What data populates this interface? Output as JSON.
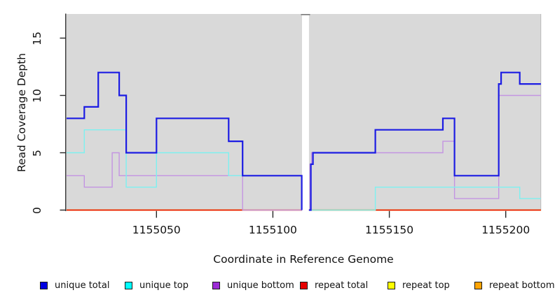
{
  "chart_data": {
    "type": "line",
    "step_style": "step-after",
    "title": "",
    "xlabel": "Coordinate in Reference Genome",
    "ylabel": "Read Coverage Depth",
    "xlim": [
      1155011,
      1155215
    ],
    "ylim": [
      0,
      17.1
    ],
    "grid": false,
    "plot_background": "#d9d9d9",
    "axis_color": "#262626",
    "gap_region": {
      "from": 1155112.5,
      "to": 1155115.5
    },
    "panels": [
      {
        "xlim": [
          1155011.4,
          1155112.5
        ]
      },
      {
        "xlim": [
          1155115.5,
          1155215.1
        ]
      }
    ],
    "x_ticks": [
      {
        "value": 1155050,
        "label": "1155050"
      },
      {
        "value": 1155100,
        "label": "1155100"
      },
      {
        "value": 1155150,
        "label": "1155150"
      },
      {
        "value": 1155200,
        "label": "1155200"
      }
    ],
    "y_ticks": [
      {
        "value": 0,
        "label": "0"
      },
      {
        "value": 5,
        "label": "5"
      },
      {
        "value": 10,
        "label": "10"
      },
      {
        "value": 15,
        "label": "15"
      }
    ],
    "legend_position": "bottom",
    "series": [
      {
        "name": "unique total",
        "legend_color": "#0000e1",
        "line_color": "#1c1ce3",
        "line_width": 2.2,
        "panels": [
          [
            [
              1155011.4,
              8
            ],
            [
              1155019,
              9
            ],
            [
              1155025,
              12
            ],
            [
              1155034,
              10
            ],
            [
              1155037,
              5
            ],
            [
              1155050,
              8
            ],
            [
              1155081,
              6
            ],
            [
              1155087,
              3
            ],
            [
              1155112.4,
              0
            ]
          ],
          [
            [
              1155115.5,
              0
            ],
            [
              1155116.3,
              4
            ],
            [
              1155117.2,
              5
            ],
            [
              1155144,
              7
            ],
            [
              1155173,
              8
            ],
            [
              1155178,
              3
            ],
            [
              1155197,
              11
            ],
            [
              1155198,
              12
            ],
            [
              1155206,
              11
            ],
            [
              1155215.1,
              11
            ]
          ]
        ]
      },
      {
        "name": "unique top",
        "legend_color": "#00ffff",
        "line_color": "#7df1f0",
        "line_width": 1.4,
        "panels": [
          [
            [
              1155011.4,
              5
            ],
            [
              1155019,
              7
            ],
            [
              1155037,
              2
            ],
            [
              1155050,
              5
            ],
            [
              1155081,
              3
            ],
            [
              1155112.4,
              0
            ]
          ],
          [
            [
              1155115.5,
              0
            ],
            [
              1155144,
              2
            ],
            [
              1155206,
              1
            ],
            [
              1155215.1,
              1
            ]
          ]
        ]
      },
      {
        "name": "unique bottom",
        "legend_color": "#9c2bd6",
        "line_color": "#c394e2",
        "line_width": 1.4,
        "panels": [
          [
            [
              1155011.4,
              3
            ],
            [
              1155019,
              2
            ],
            [
              1155031,
              5
            ],
            [
              1155034,
              3
            ],
            [
              1155087,
              0
            ],
            [
              1155112.5,
              0
            ]
          ],
          [
            [
              1155115.5,
              0
            ],
            [
              1155115.9,
              4
            ],
            [
              1155116.6,
              5
            ],
            [
              1155173,
              6
            ],
            [
              1155178,
              1
            ],
            [
              1155197,
              10
            ],
            [
              1155215.1,
              10
            ]
          ]
        ]
      },
      {
        "name": "repeat total",
        "legend_color": "#e60000",
        "line_color": "#e60000",
        "line_width": 1.4,
        "panels": [
          [
            [
              1155011.4,
              0
            ],
            [
              1155112.5,
              0
            ]
          ],
          [
            [
              1155115.5,
              0
            ],
            [
              1155215.1,
              0
            ]
          ]
        ]
      },
      {
        "name": "repeat top",
        "legend_color": "#ffff00",
        "line_color": "#ffff00",
        "line_width": 1.4,
        "panels": [
          [
            [
              1155011.4,
              0
            ],
            [
              1155112.5,
              0
            ]
          ],
          [
            [
              1155115.5,
              0
            ],
            [
              1155215.1,
              0
            ]
          ]
        ]
      },
      {
        "name": "repeat bottom",
        "legend_color": "#ffa405",
        "line_color": "#ff9f0d",
        "line_width": 1.8,
        "panels": [
          [
            [
              1155011.4,
              0
            ],
            [
              1155112.5,
              0
            ]
          ],
          [
            [
              1155115.5,
              0
            ],
            [
              1155215.1,
              0
            ]
          ]
        ]
      }
    ]
  }
}
